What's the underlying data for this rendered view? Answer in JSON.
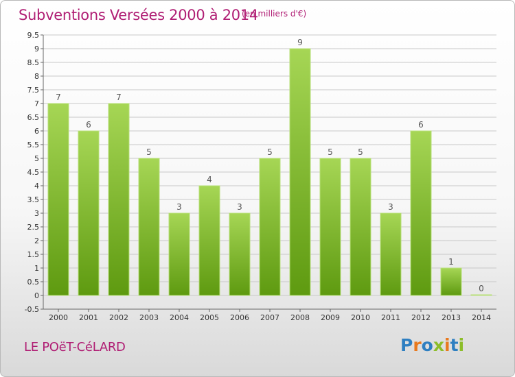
{
  "header": {
    "title": "Subventions Versées 2000 à 2014",
    "subtitle": "(en milliers d'€)"
  },
  "footer": {
    "location": "LE POëT-CéLARD",
    "logo_text": "Proxiti",
    "logo_colors": [
      "#2e7fc1",
      "#e8791e",
      "#2e7fc1",
      "#8cbd29",
      "#e8791e",
      "#2e7fc1",
      "#8cbd29"
    ]
  },
  "colors": {
    "bar_top": "#a6d655",
    "bar_bottom": "#5e9a10",
    "grid": "#c8c8c8",
    "text": "#333333",
    "brand": "#b01e74"
  },
  "chart_data": {
    "type": "bar",
    "categories": [
      "2000",
      "2001",
      "2002",
      "2003",
      "2004",
      "2005",
      "2006",
      "2007",
      "2008",
      "2009",
      "2010",
      "2011",
      "2012",
      "2013",
      "2014"
    ],
    "values": [
      7,
      6,
      7,
      5,
      3,
      4,
      3,
      5,
      9,
      5,
      5,
      3,
      6,
      1,
      0
    ],
    "yticks": [
      -0.5,
      0,
      0.5,
      1,
      1.5,
      2,
      2.5,
      3,
      3.5,
      4,
      4.5,
      5,
      5.5,
      6,
      6.5,
      7,
      7.5,
      8,
      8.5,
      9,
      9.5
    ],
    "ylim": [
      -0.5,
      9.5
    ],
    "grid": true,
    "title": "Subventions Versées 2000 à 2014",
    "xlabel": "",
    "ylabel": ""
  }
}
